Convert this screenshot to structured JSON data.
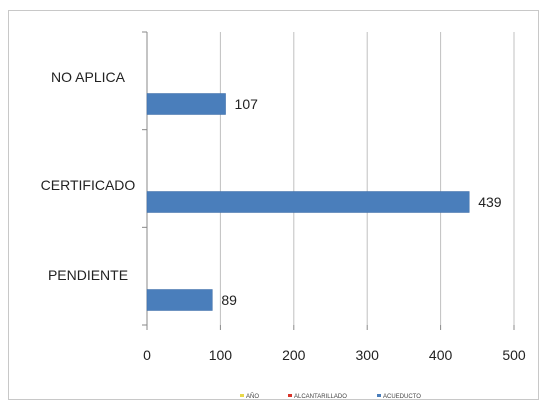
{
  "chart_data": {
    "type": "bar",
    "orientation": "horizontal",
    "title": "",
    "xlabel": "",
    "ylabel": "",
    "categories": [
      "NO APLICA",
      "CERTIFICADO",
      "PENDIENTE"
    ],
    "values": [
      107,
      439,
      89
    ],
    "data_labels": [
      "107",
      "439",
      "89"
    ],
    "xlim": [
      0,
      500
    ],
    "xticks": [
      0,
      100,
      200,
      300,
      400,
      500
    ],
    "xtick_labels": [
      "0",
      "100",
      "200",
      "300",
      "400",
      "500"
    ],
    "grid": "vertical",
    "bar_color": "#4a7ebb",
    "legend_position": "bottom",
    "legend": [
      {
        "label": "AÑO",
        "color": "#e8d84a"
      },
      {
        "label": "ALCANTARILLADO",
        "color": "#d9352b"
      },
      {
        "label": "ACUEDUCTO",
        "color": "#4a7ebb"
      }
    ]
  }
}
